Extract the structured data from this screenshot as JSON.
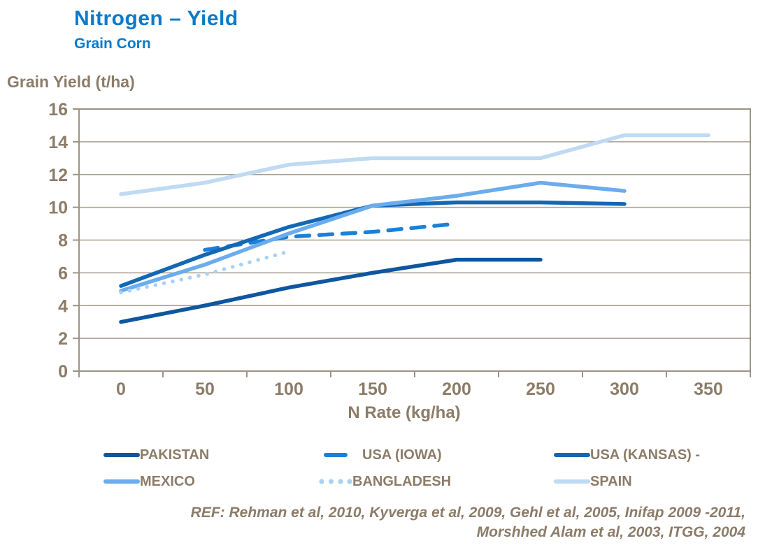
{
  "title": "Nitrogen – Yield",
  "subtitle": "Grain Corn",
  "y_axis_title": "Grain Yield (t/ha)",
  "x_axis_title": "N Rate (kg/ha)",
  "ref": {
    "line1": "REF: Rehman et al, 2010, Kyverga et al, 2009, Gehl et al, 2005, Inifap 2009 -2011,",
    "line2": "Morshhed Alam et al, 2003, ITGG, 2004"
  },
  "colors": {
    "title": "#0B7AC8",
    "axis_text": "#8C7C68",
    "gridline": "#A79E90",
    "plot_border": "#9C9384"
  },
  "chart_data": {
    "type": "line",
    "title": "Nitrogen – Yield (Grain Corn)",
    "xlabel": "N Rate (kg/ha)",
    "ylabel": "Grain Yield (t/ha)",
    "x_ticks": [
      0,
      50,
      100,
      150,
      200,
      250,
      300,
      350
    ],
    "ylim": [
      0,
      16
    ],
    "y_tick_step": 2,
    "grid": "horizontal",
    "legend_position": "bottom",
    "series": [
      {
        "name": "PAKISTAN",
        "color": "#0E56A0",
        "style": "solid",
        "x": [
          0,
          50,
          100,
          150,
          200,
          250
        ],
        "y": [
          3.0,
          4.0,
          5.1,
          6.0,
          6.8,
          6.8
        ]
      },
      {
        "name": "USA (IOWA)",
        "color": "#1C80D9",
        "style": "dashed",
        "x": [
          50,
          100,
          150,
          200
        ],
        "y": [
          7.4,
          8.2,
          8.5,
          9.0
        ]
      },
      {
        "name": "USA (KANSAS) -",
        "color": "#1368B5",
        "style": "solid",
        "x": [
          0,
          50,
          100,
          150,
          200,
          250,
          300
        ],
        "y": [
          5.2,
          7.1,
          8.8,
          10.1,
          10.3,
          10.3,
          10.2
        ]
      },
      {
        "name": "MEXICO",
        "color": "#6BACEC",
        "style": "solid",
        "x": [
          0,
          50,
          100,
          150,
          200,
          250,
          300
        ],
        "y": [
          4.9,
          6.5,
          8.4,
          10.1,
          10.7,
          11.5,
          11.0
        ]
      },
      {
        "name": "BANGLADESH",
        "color": "#AAD1F4",
        "style": "dotted",
        "x": [
          0,
          50,
          100
        ],
        "y": [
          4.8,
          5.9,
          7.3
        ]
      },
      {
        "name": "SPAIN",
        "color": "#BFDAF2",
        "style": "solid",
        "x": [
          0,
          50,
          100,
          150,
          200,
          250,
          300,
          350
        ],
        "y": [
          10.8,
          11.5,
          12.6,
          13.0,
          13.0,
          13.0,
          14.4,
          14.4
        ]
      }
    ]
  }
}
